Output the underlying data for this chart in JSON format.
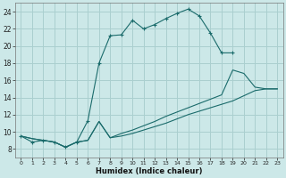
{
  "xlabel": "Humidex (Indice chaleur)",
  "bg_color": "#cce8e8",
  "line_color": "#1a6b6b",
  "xlim": [
    -0.5,
    23.5
  ],
  "ylim": [
    7,
    25
  ],
  "xticks": [
    0,
    1,
    2,
    3,
    4,
    5,
    6,
    7,
    8,
    9,
    10,
    11,
    12,
    13,
    14,
    15,
    16,
    17,
    18,
    19,
    20,
    21,
    22,
    23
  ],
  "yticks": [
    8,
    10,
    12,
    14,
    16,
    18,
    20,
    22,
    24
  ],
  "grid_color": "#aacfcf",
  "series": [
    {
      "x": [
        0,
        1,
        2,
        3,
        4,
        5,
        6,
        7,
        8,
        9,
        10,
        11,
        12,
        13,
        14,
        15,
        16,
        17,
        18,
        19
      ],
      "y": [
        9.5,
        8.8,
        9.0,
        8.8,
        8.2,
        8.8,
        11.3,
        18.0,
        21.2,
        21.3,
        23.0,
        22.0,
        22.5,
        23.2,
        23.8,
        24.3,
        23.5,
        21.5,
        19.2,
        19.2
      ],
      "marker": "+"
    },
    {
      "x": [
        0,
        1,
        2,
        3,
        4,
        5,
        6,
        7,
        8,
        9,
        10,
        11,
        12,
        13,
        14,
        15,
        16,
        17,
        18,
        19,
        20,
        21,
        22,
        23
      ],
      "y": [
        9.5,
        9.2,
        9.0,
        8.8,
        8.2,
        8.8,
        9.0,
        11.2,
        9.3,
        9.8,
        10.2,
        10.7,
        11.2,
        11.8,
        12.3,
        12.8,
        13.3,
        13.8,
        14.3,
        17.2,
        16.8,
        15.2,
        15.0,
        15.0
      ],
      "marker": null
    },
    {
      "x": [
        0,
        1,
        2,
        3,
        4,
        5,
        6,
        7,
        8,
        9,
        10,
        11,
        12,
        13,
        14,
        15,
        16,
        17,
        18,
        19,
        20,
        21,
        22,
        23
      ],
      "y": [
        9.5,
        9.2,
        9.0,
        8.8,
        8.2,
        8.8,
        9.0,
        11.2,
        9.3,
        9.5,
        9.8,
        10.2,
        10.6,
        11.0,
        11.5,
        12.0,
        12.4,
        12.8,
        13.2,
        13.6,
        14.2,
        14.8,
        15.0,
        15.0
      ],
      "marker": null
    }
  ]
}
